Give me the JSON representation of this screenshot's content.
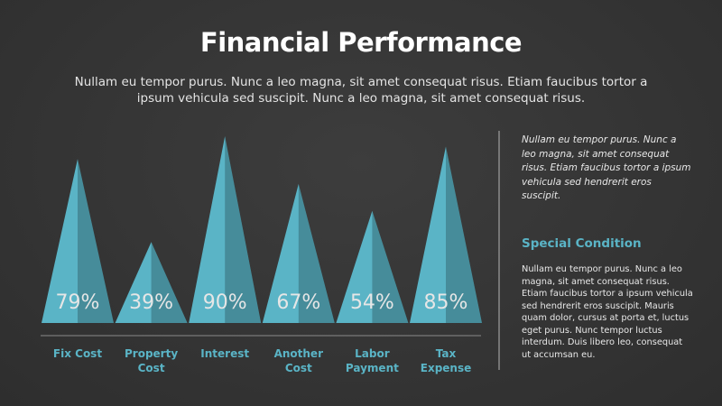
{
  "chart_data": {
    "type": "pyramid",
    "title": "Financial Performance",
    "subtitle": "Nullam eu tempor purus. Nunc a leo magna, sit amet consequat risus. Etiam faucibus tortor a ipsum vehicula sed suscipit. Nunc a leo magna, sit amet consequat risus.",
    "categories": [
      "Fix Cost",
      "Property Cost",
      "Interest",
      "Another Cost",
      "Labor Payment",
      "Tax Expense"
    ],
    "values": [
      79,
      39,
      90,
      67,
      54,
      85
    ],
    "value_labels": [
      "79%",
      "39%",
      "90%",
      "67%",
      "54%",
      "85%"
    ],
    "color": "#5ab4c6"
  },
  "sidebar": {
    "intro": "Nullam eu tempor purus. Nunc a leo magna, sit amet consequat risus. Etiam faucibus tortor a ipsum vehicula sed hendrerit eros suscipit.",
    "heading": "Special Condition",
    "body": "Nullam eu tempor purus. Nunc a leo magna, sit amet consequat risus. Etiam faucibus tortor a ipsum vehicula sed hendrerit eros suscipit. Mauris quam dolor, cursus at porta et, luctus eget purus. Nunc tempor luctus interdum. Duis libero leo, consequat ut accumsan eu."
  }
}
